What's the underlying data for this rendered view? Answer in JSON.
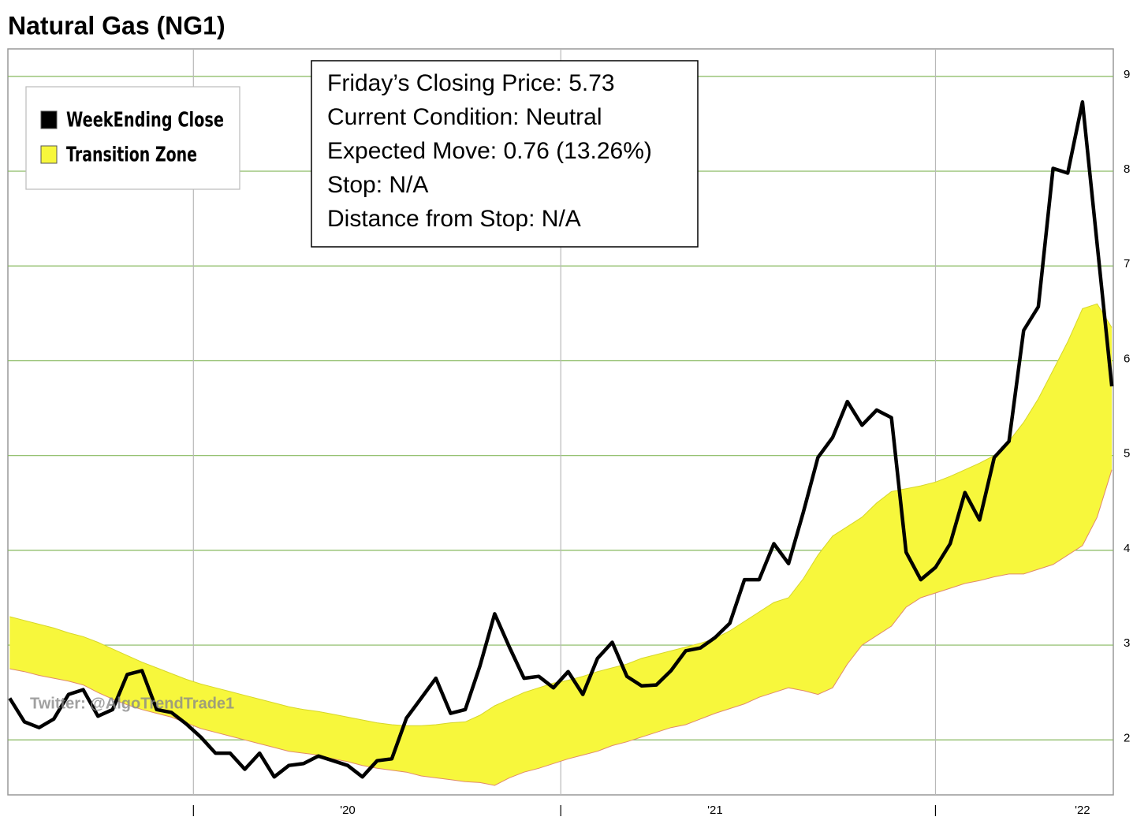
{
  "chart_data": {
    "type": "line",
    "title": "Natural Gas (NG1)",
    "annotations": [
      "Friday’s Closing Price: 5.73",
      "Current Condition: Neutral",
      "Expected Move: 0.76 (13.26%)",
      "Stop: N/A",
      "Distance from Stop: N/A"
    ],
    "watermark": "Twitter: @AlgoTrendTrade1",
    "grid": true,
    "legend": "upper left",
    "x": [
      2019.08,
      2019.12,
      2019.16,
      2019.2,
      2019.24,
      2019.28,
      2019.32,
      2019.36,
      2019.4,
      2019.44,
      2019.48,
      2019.52,
      2019.56,
      2019.6,
      2019.64,
      2019.68,
      2019.72,
      2019.76,
      2019.8,
      2019.84,
      2019.88,
      2019.92,
      2019.96,
      2020.0,
      2020.04,
      2020.08,
      2020.12,
      2020.16,
      2020.2,
      2020.24,
      2020.28,
      2020.32,
      2020.36,
      2020.4,
      2020.44,
      2020.48,
      2020.52,
      2020.56,
      2020.6,
      2020.64,
      2020.68,
      2020.72,
      2020.76,
      2020.8,
      2020.84,
      2020.88,
      2020.92,
      2020.96,
      2021.0,
      2021.04,
      2021.08,
      2021.12,
      2021.16,
      2021.2,
      2021.24,
      2021.28,
      2021.32,
      2021.36,
      2021.4,
      2021.44,
      2021.48,
      2021.52,
      2021.56,
      2021.6,
      2021.64,
      2021.68,
      2021.72,
      2021.76,
      2021.8,
      2021.84,
      2021.88,
      2021.92,
      2021.96,
      2022.0,
      2022.04,
      2022.08
    ],
    "xlim": [
      2019.075,
      2022.084
    ],
    "xticks": [
      {
        "value": 2019.58,
        "label": "|"
      },
      {
        "value": 2020.0,
        "label": "'20"
      },
      {
        "value": 2020.58,
        "label": "|"
      },
      {
        "value": 2021.0,
        "label": "'21"
      },
      {
        "value": 2021.6,
        "label": "|"
      },
      {
        "value": 2022.0,
        "label": "'22"
      }
    ],
    "ylim": [
      1.42,
      9.29
    ],
    "yticks": [
      2,
      3,
      4,
      5,
      6,
      7,
      8,
      9
    ],
    "series": [
      {
        "name": "WeekEnding Close",
        "color": "#000000",
        "values": [
          2.44,
          2.19,
          2.13,
          2.22,
          2.48,
          2.53,
          2.25,
          2.32,
          2.69,
          2.73,
          2.32,
          2.29,
          2.17,
          2.03,
          1.86,
          1.86,
          1.69,
          1.86,
          1.61,
          1.73,
          1.75,
          1.83,
          1.78,
          1.73,
          1.61,
          1.78,
          1.8,
          2.23,
          2.44,
          2.65,
          2.28,
          2.32,
          2.78,
          3.33,
          2.98,
          2.65,
          2.67,
          2.55,
          2.72,
          2.48,
          2.86,
          3.03,
          2.67,
          2.57,
          2.58,
          2.73,
          2.94,
          2.97,
          3.08,
          3.23,
          3.69,
          3.69,
          4.07,
          3.86,
          4.4,
          4.98,
          5.19,
          5.57,
          5.32,
          5.48,
          5.4,
          3.98,
          3.69,
          3.82,
          4.07,
          4.61,
          4.32,
          4.98,
          5.15,
          6.32,
          6.57,
          8.03,
          7.98,
          8.73,
          7.23,
          5.73
        ]
      },
      {
        "name": "Transition Zone",
        "color": "#f7f73c",
        "upper": [
          3.3,
          3.26,
          3.22,
          3.18,
          3.13,
          3.09,
          3.03,
          2.96,
          2.89,
          2.82,
          2.76,
          2.7,
          2.64,
          2.59,
          2.55,
          2.51,
          2.47,
          2.43,
          2.39,
          2.35,
          2.32,
          2.3,
          2.27,
          2.24,
          2.21,
          2.18,
          2.16,
          2.15,
          2.15,
          2.16,
          2.18,
          2.19,
          2.26,
          2.36,
          2.43,
          2.5,
          2.55,
          2.6,
          2.63,
          2.67,
          2.72,
          2.76,
          2.8,
          2.86,
          2.9,
          2.94,
          2.98,
          3.02,
          3.07,
          3.15,
          3.25,
          3.35,
          3.45,
          3.5,
          3.7,
          3.95,
          4.15,
          4.25,
          4.35,
          4.5,
          4.62,
          4.65,
          4.68,
          4.72,
          4.78,
          4.85,
          4.92,
          5.0,
          5.15,
          5.35,
          5.6,
          5.9,
          6.2,
          6.55,
          6.6,
          6.35
        ],
        "lower": [
          2.75,
          2.72,
          2.68,
          2.65,
          2.62,
          2.58,
          2.5,
          2.43,
          2.37,
          2.32,
          2.28,
          2.24,
          2.18,
          2.12,
          2.08,
          2.04,
          2.0,
          1.96,
          1.92,
          1.88,
          1.86,
          1.84,
          1.8,
          1.77,
          1.73,
          1.7,
          1.68,
          1.66,
          1.62,
          1.6,
          1.58,
          1.56,
          1.55,
          1.52,
          1.6,
          1.66,
          1.7,
          1.75,
          1.8,
          1.84,
          1.88,
          1.94,
          1.98,
          2.03,
          2.08,
          2.13,
          2.16,
          2.22,
          2.28,
          2.33,
          2.38,
          2.45,
          2.5,
          2.55,
          2.52,
          2.48,
          2.55,
          2.8,
          3.0,
          3.1,
          3.2,
          3.4,
          3.5,
          3.55,
          3.6,
          3.65,
          3.68,
          3.72,
          3.75,
          3.75,
          3.8,
          3.85,
          3.95,
          4.05,
          4.35,
          4.85
        ]
      }
    ]
  }
}
